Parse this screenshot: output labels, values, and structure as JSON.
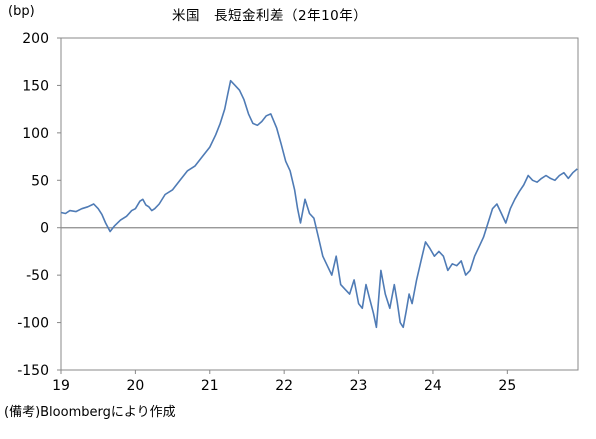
{
  "title": "米国　長短金利差（2年10年）",
  "unit_label": "(bp)",
  "source_note": "(備考)Bloombergにより作成",
  "chart_data": {
    "type": "line",
    "title": "米国　長短金利差（2年10年）",
    "ylabel": "(bp)",
    "xlabel": "",
    "ylim": [
      -150,
      200
    ],
    "yticks": [
      -150,
      -100,
      -50,
      0,
      50,
      100,
      150,
      200
    ],
    "xlim": [
      2019.0,
      2025.95
    ],
    "xticks": [
      {
        "value": 2019,
        "label": "19"
      },
      {
        "value": 2020,
        "label": "20"
      },
      {
        "value": 2021,
        "label": "21"
      },
      {
        "value": 2022,
        "label": "22"
      },
      {
        "value": 2023,
        "label": "23"
      },
      {
        "value": 2024,
        "label": "24"
      },
      {
        "value": 2025,
        "label": "25"
      }
    ],
    "zero_line": true,
    "grid": false,
    "series_color": "#4f7bb5",
    "zero_line_color": "#8c8c8c",
    "series": [
      {
        "x": [
          2019.0,
          2019.06,
          2019.12,
          2019.2,
          2019.28,
          2019.36,
          2019.44,
          2019.5,
          2019.55,
          2019.6,
          2019.66,
          2019.72,
          2019.8,
          2019.88,
          2019.95,
          2020.0,
          2020.06,
          2020.1,
          2020.14,
          2020.18,
          2020.22,
          2020.26,
          2020.32,
          2020.4,
          2020.5,
          2020.6,
          2020.7,
          2020.8,
          2020.9,
          2021.0,
          2021.08,
          2021.14,
          2021.2,
          2021.24,
          2021.28,
          2021.34,
          2021.4,
          2021.46,
          2021.52,
          2021.58,
          2021.64,
          2021.7,
          2021.76,
          2021.82,
          2021.9,
          2021.96,
          2022.02,
          2022.08,
          2022.14,
          2022.18,
          2022.22,
          2022.28,
          2022.34,
          2022.4,
          2022.46,
          2022.52,
          2022.58,
          2022.64,
          2022.7,
          2022.76,
          2022.82,
          2022.88,
          2022.94,
          2023.0,
          2023.05,
          2023.1,
          2023.15,
          2023.2,
          2023.24,
          2023.3,
          2023.36,
          2023.42,
          2023.48,
          2023.52,
          2023.56,
          2023.6,
          2023.64,
          2023.68,
          2023.72,
          2023.78,
          2023.84,
          2023.9,
          2023.96,
          2024.02,
          2024.08,
          2024.14,
          2024.2,
          2024.26,
          2024.32,
          2024.38,
          2024.44,
          2024.5,
          2024.56,
          2024.62,
          2024.68,
          2024.74,
          2024.8,
          2024.86,
          2024.92,
          2024.98,
          2025.04,
          2025.1,
          2025.16,
          2025.22,
          2025.28,
          2025.34,
          2025.4,
          2025.46,
          2025.52,
          2025.58,
          2025.64,
          2025.7,
          2025.76,
          2025.82,
          2025.88,
          2025.94
        ],
        "y": [
          16,
          15,
          18,
          17,
          20,
          22,
          25,
          20,
          14,
          5,
          -4,
          2,
          8,
          12,
          18,
          20,
          28,
          30,
          24,
          22,
          18,
          20,
          25,
          35,
          40,
          50,
          60,
          65,
          75,
          85,
          98,
          110,
          125,
          140,
          155,
          150,
          145,
          135,
          120,
          110,
          108,
          112,
          118,
          120,
          105,
          88,
          70,
          60,
          40,
          20,
          5,
          30,
          15,
          10,
          -10,
          -30,
          -40,
          -50,
          -30,
          -60,
          -65,
          -70,
          -55,
          -80,
          -85,
          -60,
          -75,
          -90,
          -105,
          -45,
          -70,
          -85,
          -60,
          -78,
          -100,
          -105,
          -88,
          -70,
          -80,
          -55,
          -35,
          -15,
          -22,
          -30,
          -25,
          -30,
          -45,
          -38,
          -40,
          -35,
          -50,
          -45,
          -30,
          -20,
          -10,
          5,
          20,
          25,
          15,
          5,
          20,
          30,
          38,
          45,
          55,
          50,
          48,
          52,
          55,
          52,
          50,
          55,
          58,
          52,
          58,
          62
        ]
      }
    ]
  }
}
